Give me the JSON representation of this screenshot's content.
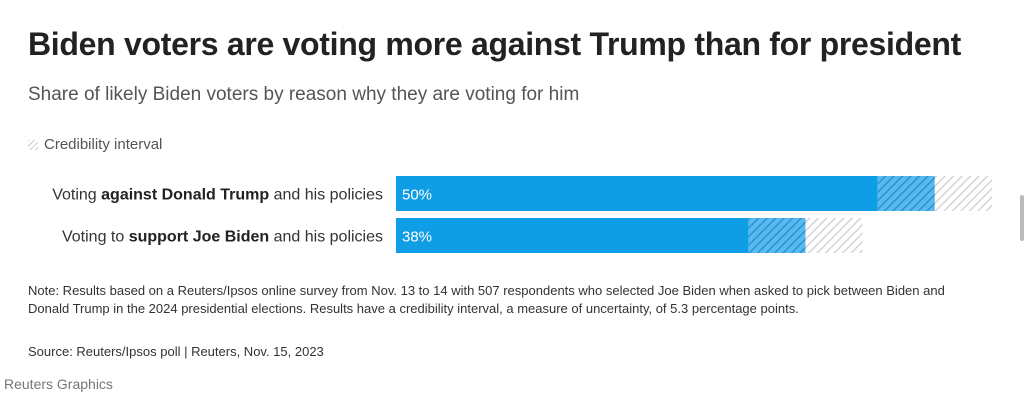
{
  "colors": {
    "bar": "#0f9ee6",
    "ci_overlap": "#4fb4ee",
    "ci_hatch": "#d4d4d4"
  },
  "chart_data": {
    "type": "bar",
    "orientation": "horizontal",
    "title": "Biden voters are voting more against Trump than for president",
    "subtitle": "Share of likely Biden voters by reason why they are voting for him",
    "legend": [
      "Credibility interval"
    ],
    "categories": [
      {
        "pre": "Voting ",
        "bold": "against Donald Trump",
        "post": " and his policies"
      },
      {
        "pre": "Voting to ",
        "bold": "support Joe Biden",
        "post": " and his policies"
      }
    ],
    "values": [
      50,
      38
    ],
    "value_labels": [
      "50%",
      "38%"
    ],
    "credibility_interval": 5.3,
    "xlim": [
      0,
      55.3
    ],
    "unit": "%"
  },
  "note": "Note: Results based on a Reuters/Ipsos online survey from Nov. 13 to 14 with 507 respondents who selected Joe Biden when asked to pick between Biden and Donald Trump in the 2024 presidential elections. Results have a credibility interval, a measure of uncertainty, of 5.3 percentage points.",
  "source": "Source: Reuters/Ipsos poll | Reuters, Nov. 15, 2023",
  "credit": "Reuters Graphics"
}
